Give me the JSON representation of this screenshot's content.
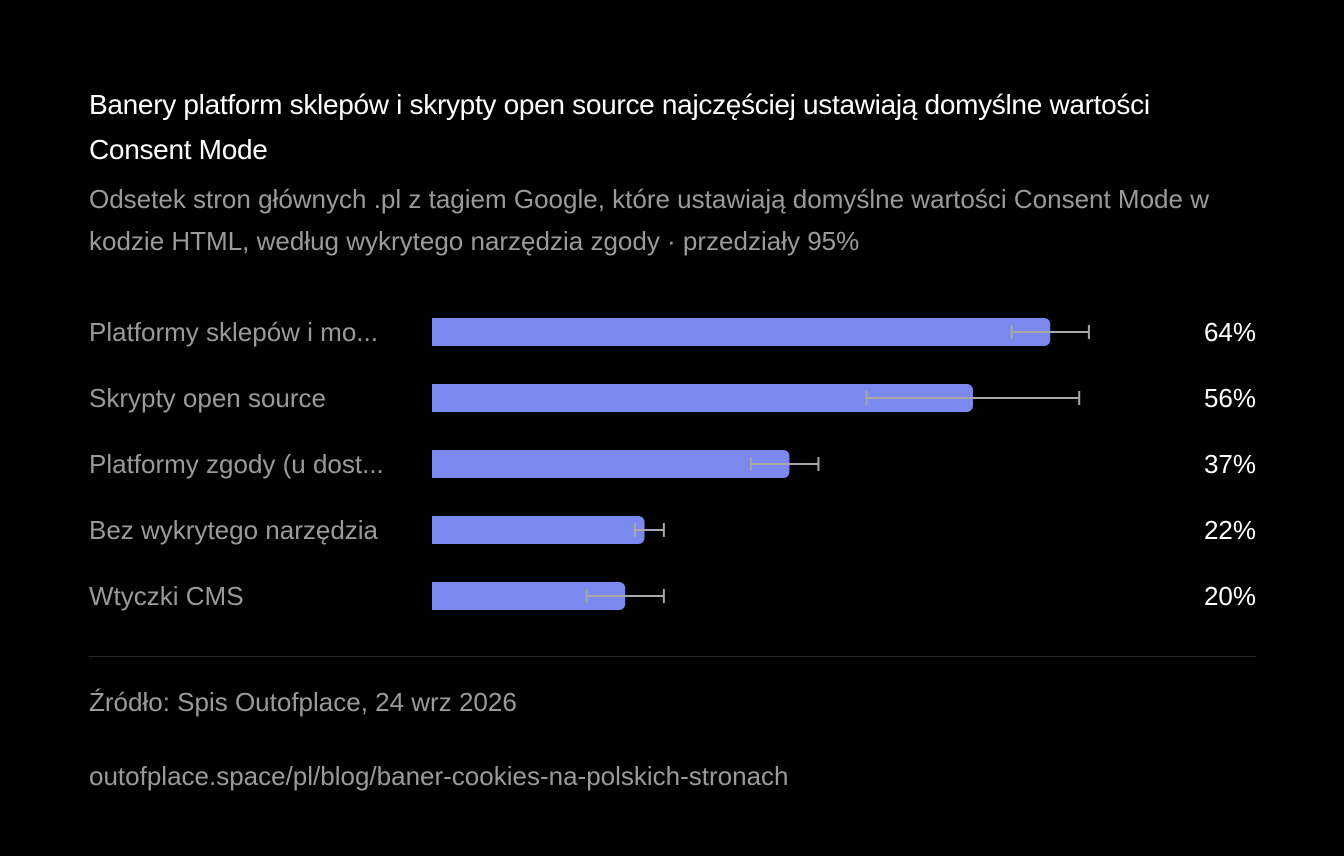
{
  "title": "Banery platform sklepów i skrypty open source najczęściej ustawiają domyślne wartości Consent Mode",
  "subtitle": "Odsetek stron głównych .pl z tagiem Google, które ustawiają domyślne wartości Consent Mode w kodzie HTML, według wykrytego narzędzia zgody · przedziały 95%",
  "footer": {
    "source": "Źródło: Spis Outofplace, 24 wrz 2026",
    "url": "outofplace.space/pl/blog/baner-cookies-na-polskich-stronach"
  },
  "colors": {
    "bar": "#7b88ee",
    "error_bar": "#a8a8a8",
    "label": "#9a9a9a",
    "value": "#ffffff"
  },
  "chart_data": {
    "type": "bar",
    "orientation": "horizontal",
    "xlim": [
      0,
      100
    ],
    "categories": [
      "Platformy sklepów i mo...",
      "Skrypty open source",
      "Platformy zgody (u dost...",
      "Bez wykrytego narzędzia",
      "Wtyczki CMS"
    ],
    "values": [
      64,
      56,
      37,
      22,
      20
    ],
    "value_labels": [
      "64%",
      "56%",
      "37%",
      "22%",
      "20%"
    ],
    "ci_low": [
      60,
      45,
      33,
      21,
      16
    ],
    "ci_high": [
      68,
      67,
      40,
      24,
      24
    ]
  }
}
